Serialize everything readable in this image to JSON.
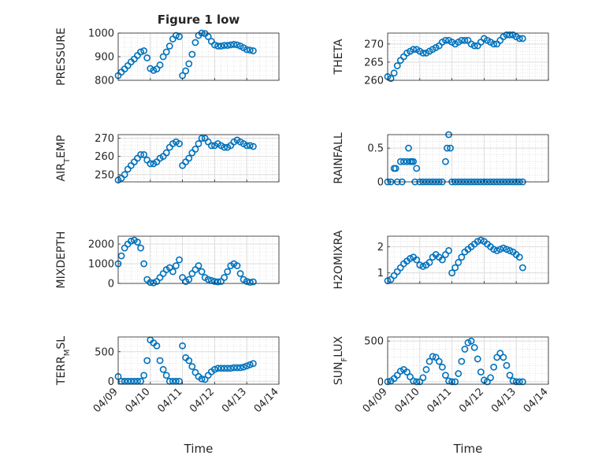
{
  "figure": {
    "title": "Figure 1 low",
    "xlabel": "Time"
  },
  "colors": {
    "marker": "#0072BD",
    "axis": "#262626",
    "grid": "#dcdcdc"
  },
  "chart_data": [
    {
      "type": "scatter",
      "ylabel": "PRESSURE",
      "ylim": [
        800,
        1000
      ],
      "yticks": [
        "800",
        "900",
        "1000"
      ],
      "ytick_values": [
        800,
        900,
        1000
      ],
      "xlim": [
        0,
        5
      ],
      "grid": true,
      "marker": "circle",
      "x": [
        0,
        0.1,
        0.2,
        0.3,
        0.4,
        0.5,
        0.6,
        0.7,
        0.8,
        0.9,
        1.0,
        1.1,
        1.2,
        1.3,
        1.4,
        1.5,
        1.6,
        1.7,
        1.8,
        1.9,
        2.0,
        2.1,
        2.2,
        2.3,
        2.4,
        2.5,
        2.6,
        2.7,
        2.8,
        2.9,
        3.0,
        3.1,
        3.2,
        3.3,
        3.4,
        3.5,
        3.6,
        3.7,
        3.8,
        3.9,
        4.0,
        4.1,
        4.2
      ],
      "y": [
        820,
        835,
        848,
        862,
        878,
        890,
        905,
        920,
        925,
        895,
        850,
        842,
        848,
        865,
        900,
        920,
        945,
        975,
        990,
        985,
        820,
        840,
        870,
        910,
        960,
        990,
        1000,
        998,
        985,
        965,
        950,
        945,
        945,
        948,
        948,
        950,
        952,
        950,
        945,
        938,
        930,
        928,
        925
      ]
    },
    {
      "type": "scatter",
      "ylabel": "THETA",
      "ylim": [
        260,
        273
      ],
      "yticks": [
        "260",
        "265",
        "270"
      ],
      "ytick_values": [
        260,
        265,
        270
      ],
      "xlim": [
        0,
        5
      ],
      "grid": true,
      "marker": "circle",
      "x": [
        0,
        0.1,
        0.2,
        0.3,
        0.4,
        0.5,
        0.6,
        0.7,
        0.8,
        0.9,
        1.0,
        1.1,
        1.2,
        1.3,
        1.4,
        1.5,
        1.6,
        1.7,
        1.8,
        1.9,
        2.0,
        2.1,
        2.2,
        2.3,
        2.4,
        2.5,
        2.6,
        2.7,
        2.8,
        2.9,
        3.0,
        3.1,
        3.2,
        3.3,
        3.4,
        3.5,
        3.6,
        3.7,
        3.8,
        3.9,
        4.0,
        4.1,
        4.2
      ],
      "y": [
        261,
        260.5,
        262,
        264,
        265.5,
        266.5,
        267.5,
        268,
        268.5,
        268.5,
        268,
        267.5,
        267.5,
        268,
        268.5,
        269,
        269.5,
        270.5,
        271,
        271,
        270.5,
        270,
        270.5,
        271,
        271,
        271,
        270,
        269.5,
        269.5,
        270.5,
        271.5,
        271,
        270.5,
        270,
        270,
        271,
        272,
        272.5,
        272.5,
        272.5,
        272,
        271.5,
        271.5
      ]
    },
    {
      "type": "scatter",
      "ylabel": "AIR_TEMP",
      "ylim": [
        246,
        272
      ],
      "yticks": [
        "250",
        "260",
        "270"
      ],
      "ytick_values": [
        250,
        260,
        270
      ],
      "xlim": [
        0,
        5
      ],
      "grid": true,
      "marker": "circle",
      "x": [
        0,
        0.1,
        0.2,
        0.3,
        0.4,
        0.5,
        0.6,
        0.7,
        0.8,
        0.9,
        1.0,
        1.1,
        1.2,
        1.3,
        1.4,
        1.5,
        1.6,
        1.7,
        1.8,
        1.9,
        2.0,
        2.1,
        2.2,
        2.3,
        2.4,
        2.5,
        2.6,
        2.7,
        2.8,
        2.9,
        3.0,
        3.1,
        3.2,
        3.3,
        3.4,
        3.5,
        3.6,
        3.7,
        3.8,
        3.9,
        4.0,
        4.1,
        4.2
      ],
      "y": [
        247,
        248,
        250,
        253,
        255,
        257,
        259,
        261,
        261,
        258,
        256,
        256,
        257,
        259,
        260,
        262,
        265,
        267,
        268,
        267,
        255,
        257,
        259,
        262,
        264,
        267,
        270,
        270,
        268,
        266,
        266,
        267,
        266,
        265,
        265,
        266,
        268,
        269,
        268,
        267,
        266,
        266,
        265.5
      ]
    },
    {
      "type": "scatter",
      "ylabel": "RAINFALL",
      "ylim": [
        0,
        0.7
      ],
      "yticks": [
        "0",
        "0.5"
      ],
      "ytick_values": [
        0,
        0.5
      ],
      "xlim": [
        0,
        5
      ],
      "grid": true,
      "marker": "circle",
      "x": [
        0,
        0.1,
        0.2,
        0.25,
        0.3,
        0.4,
        0.45,
        0.5,
        0.6,
        0.65,
        0.7,
        0.75,
        0.8,
        0.85,
        0.9,
        1.0,
        1.1,
        1.2,
        1.3,
        1.4,
        1.5,
        1.6,
        1.7,
        1.8,
        1.85,
        1.9,
        1.95,
        2.0,
        2.1,
        2.2,
        2.3,
        2.4,
        2.5,
        2.6,
        2.7,
        2.8,
        2.9,
        3.0,
        3.1,
        3.2,
        3.3,
        3.4,
        3.5,
        3.6,
        3.7,
        3.8,
        3.9,
        4.0,
        4.1,
        4.2
      ],
      "y": [
        0,
        0,
        0.2,
        0.2,
        0,
        0.3,
        0,
        0.3,
        0.3,
        0.5,
        0.3,
        0.3,
        0.3,
        0,
        0.2,
        0,
        0,
        0,
        0,
        0,
        0,
        0,
        0,
        0.3,
        0.5,
        0.7,
        0.5,
        0,
        0,
        0,
        0,
        0,
        0,
        0,
        0,
        0,
        0,
        0,
        0,
        0,
        0,
        0,
        0,
        0,
        0,
        0,
        0,
        0,
        0,
        0
      ]
    },
    {
      "type": "scatter",
      "ylabel": "MIXDEPTH",
      "ylim": [
        0,
        2400
      ],
      "yticks": [
        "0",
        "1000",
        "2000"
      ],
      "ytick_values": [
        0,
        1000,
        2000
      ],
      "xlim": [
        0,
        5
      ],
      "grid": true,
      "marker": "circle",
      "x": [
        0,
        0.1,
        0.2,
        0.3,
        0.4,
        0.5,
        0.6,
        0.7,
        0.8,
        0.9,
        1.0,
        1.1,
        1.2,
        1.3,
        1.4,
        1.5,
        1.6,
        1.7,
        1.8,
        1.9,
        2.0,
        2.1,
        2.2,
        2.3,
        2.4,
        2.5,
        2.6,
        2.7,
        2.8,
        2.9,
        3.0,
        3.1,
        3.2,
        3.3,
        3.4,
        3.5,
        3.6,
        3.7,
        3.8,
        3.9,
        4.0,
        4.1,
        4.2
      ],
      "y": [
        1000,
        1400,
        1800,
        2000,
        2150,
        2200,
        2100,
        1800,
        1000,
        200,
        50,
        30,
        100,
        300,
        500,
        700,
        800,
        600,
        900,
        1200,
        300,
        100,
        200,
        500,
        700,
        900,
        600,
        300,
        200,
        150,
        100,
        80,
        100,
        300,
        600,
        900,
        1000,
        900,
        500,
        200,
        100,
        60,
        80
      ]
    },
    {
      "type": "scatter",
      "ylabel": "H2OMIXRA",
      "ylim": [
        0.6,
        2.4
      ],
      "yticks": [
        "1",
        "2"
      ],
      "ytick_values": [
        1,
        2
      ],
      "xlim": [
        0,
        5
      ],
      "grid": true,
      "marker": "circle",
      "x": [
        0,
        0.1,
        0.2,
        0.3,
        0.4,
        0.5,
        0.6,
        0.7,
        0.8,
        0.9,
        1.0,
        1.1,
        1.2,
        1.3,
        1.4,
        1.5,
        1.6,
        1.7,
        1.8,
        1.9,
        2.0,
        2.1,
        2.2,
        2.3,
        2.4,
        2.5,
        2.6,
        2.7,
        2.8,
        2.9,
        3.0,
        3.1,
        3.2,
        3.3,
        3.4,
        3.5,
        3.6,
        3.7,
        3.8,
        3.9,
        4.0,
        4.1,
        4.2
      ],
      "y": [
        0.7,
        0.75,
        0.9,
        1.05,
        1.2,
        1.35,
        1.45,
        1.55,
        1.6,
        1.5,
        1.3,
        1.25,
        1.3,
        1.4,
        1.6,
        1.7,
        1.6,
        1.5,
        1.7,
        1.85,
        1.0,
        1.2,
        1.4,
        1.6,
        1.8,
        1.9,
        2.0,
        2.1,
        2.2,
        2.25,
        2.2,
        2.1,
        2.0,
        1.9,
        1.85,
        1.9,
        1.95,
        1.9,
        1.85,
        1.8,
        1.7,
        1.6,
        1.2
      ]
    },
    {
      "type": "scatter",
      "ylabel": "TERR_MSL",
      "ylim": [
        -50,
        750
      ],
      "yticks": [
        "0",
        "500"
      ],
      "ytick_values": [
        0,
        500
      ],
      "xlim": [
        0,
        5
      ],
      "grid": true,
      "marker": "circle",
      "x": [
        0,
        0.1,
        0.2,
        0.3,
        0.4,
        0.5,
        0.6,
        0.7,
        0.8,
        0.9,
        1.0,
        1.1,
        1.2,
        1.3,
        1.4,
        1.5,
        1.6,
        1.7,
        1.8,
        1.9,
        2.0,
        2.1,
        2.2,
        2.3,
        2.4,
        2.5,
        2.6,
        2.7,
        2.8,
        2.9,
        3.0,
        3.1,
        3.2,
        3.3,
        3.4,
        3.5,
        3.6,
        3.7,
        3.8,
        3.9,
        4.0,
        4.1,
        4.2
      ],
      "y": [
        80,
        0,
        0,
        0,
        0,
        0,
        0,
        0,
        100,
        350,
        700,
        650,
        600,
        350,
        200,
        100,
        0,
        0,
        0,
        0,
        600,
        400,
        350,
        250,
        150,
        80,
        40,
        30,
        100,
        160,
        200,
        220,
        220,
        220,
        220,
        220,
        230,
        230,
        230,
        240,
        260,
        280,
        300
      ]
    },
    {
      "type": "scatter",
      "ylabel": "SUN_FLUX",
      "ylim": [
        -30,
        550
      ],
      "yticks": [
        "0",
        "500"
      ],
      "ytick_values": [
        0,
        500
      ],
      "xlim": [
        0,
        5
      ],
      "grid": true,
      "marker": "circle",
      "x": [
        0,
        0.1,
        0.2,
        0.3,
        0.4,
        0.5,
        0.6,
        0.7,
        0.8,
        0.9,
        1.0,
        1.1,
        1.2,
        1.3,
        1.4,
        1.5,
        1.6,
        1.7,
        1.8,
        1.9,
        2.0,
        2.1,
        2.2,
        2.3,
        2.4,
        2.5,
        2.6,
        2.7,
        2.8,
        2.9,
        3.0,
        3.1,
        3.2,
        3.3,
        3.4,
        3.5,
        3.6,
        3.7,
        3.8,
        3.9,
        4.0,
        4.1,
        4.2
      ],
      "y": [
        0,
        10,
        40,
        80,
        130,
        150,
        120,
        60,
        10,
        0,
        0,
        50,
        150,
        250,
        310,
        300,
        250,
        180,
        80,
        10,
        0,
        0,
        100,
        250,
        400,
        480,
        500,
        420,
        280,
        120,
        20,
        0,
        50,
        180,
        300,
        350,
        300,
        200,
        80,
        10,
        0,
        0,
        0
      ]
    }
  ],
  "shared_x": {
    "ticks": [
      "04/09",
      "04/10",
      "04/11",
      "04/12",
      "04/13",
      "04/14"
    ],
    "tick_values": [
      0,
      1,
      2,
      3,
      4,
      5
    ]
  }
}
